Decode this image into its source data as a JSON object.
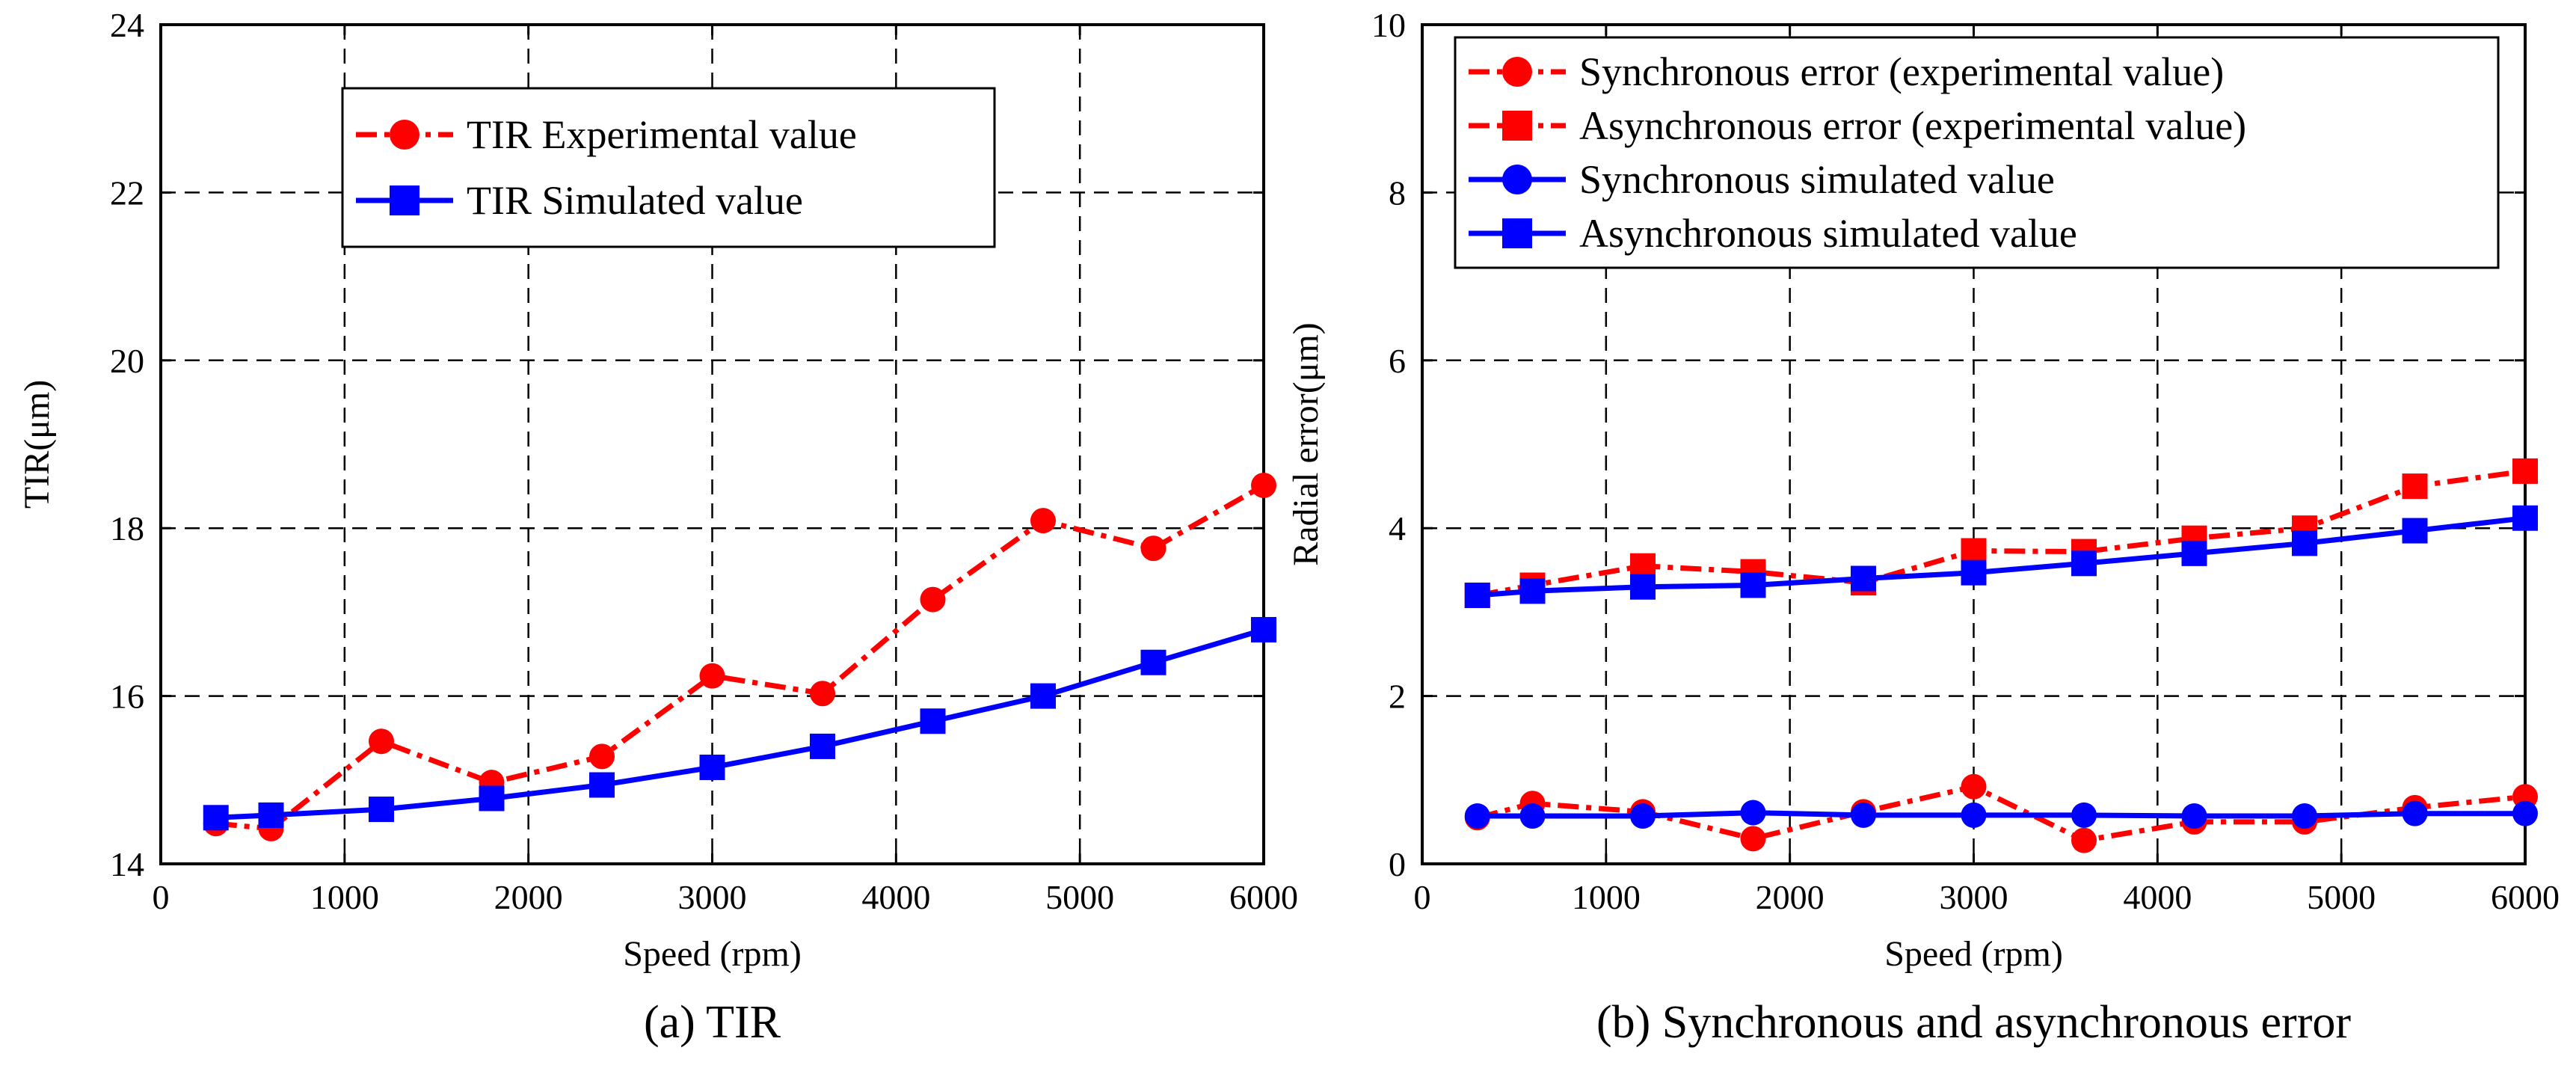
{
  "colors": {
    "experimental": "#ff0000",
    "simulated": "#0000ff"
  },
  "chart_data": [
    {
      "type": "line",
      "caption": "(a) TIR",
      "xlabel": "Speed (rpm)",
      "ylabel": "TIR(μm)",
      "xlim": [
        0,
        6000
      ],
      "ylim": [
        14,
        24
      ],
      "xticks": [
        0,
        1000,
        2000,
        3000,
        4000,
        5000,
        6000
      ],
      "yticks": [
        14,
        16,
        18,
        20,
        22,
        24
      ],
      "xtick_labels": [
        "0",
        "1000",
        "2000",
        "3000",
        "4000",
        "5000",
        "6000"
      ],
      "ytick_labels": [
        "14",
        "16",
        "18",
        "20",
        "22",
        "24"
      ],
      "grid": true,
      "legend_position": "top-center",
      "x": [
        300,
        600,
        1200,
        1800,
        2400,
        3000,
        3600,
        4200,
        4800,
        5400,
        6000
      ],
      "series": [
        {
          "name": "TIR Experimental value",
          "marker": "circle",
          "line": "dash-dot",
          "color": "#ff0000",
          "values": [
            14.48,
            14.42,
            15.46,
            14.97,
            15.28,
            16.24,
            16.03,
            17.15,
            18.09,
            17.76,
            18.51
          ]
        },
        {
          "name": "TIR Simulated value",
          "marker": "square",
          "line": "solid",
          "color": "#0000ff",
          "values": [
            14.55,
            14.58,
            14.65,
            14.78,
            14.94,
            15.15,
            15.4,
            15.7,
            16.0,
            16.4,
            16.79
          ]
        }
      ]
    },
    {
      "type": "line",
      "caption": "(b) Synchronous and asynchronous error",
      "xlabel": "Speed (rpm)",
      "ylabel": "Radial error(μm)",
      "xlim": [
        0,
        6000
      ],
      "ylim": [
        0,
        10
      ],
      "xticks": [
        0,
        1000,
        2000,
        3000,
        4000,
        5000,
        6000
      ],
      "yticks": [
        0,
        2,
        4,
        6,
        8,
        10
      ],
      "xtick_labels": [
        "0",
        "1000",
        "2000",
        "3000",
        "4000",
        "5000",
        "6000"
      ],
      "ytick_labels": [
        "0",
        "2",
        "4",
        "6",
        "8",
        "10"
      ],
      "grid": true,
      "legend_position": "top",
      "x": [
        300,
        600,
        1200,
        1800,
        2400,
        3000,
        3600,
        4200,
        4800,
        5400,
        6000
      ],
      "series": [
        {
          "name": "Synchronous error (experimental value)",
          "marker": "circle",
          "line": "dash-dot",
          "color": "#ff0000",
          "values": [
            0.55,
            0.72,
            0.62,
            0.3,
            0.62,
            0.92,
            0.28,
            0.5,
            0.5,
            0.67,
            0.8
          ]
        },
        {
          "name": "Asynchronous error (experimental value)",
          "marker": "square",
          "line": "dash-dot",
          "color": "#ff0000",
          "values": [
            3.2,
            3.32,
            3.55,
            3.48,
            3.35,
            3.73,
            3.72,
            3.88,
            4.0,
            4.5,
            4.68
          ]
        },
        {
          "name": "Synchronous simulated value",
          "marker": "circle",
          "line": "solid",
          "color": "#0000ff",
          "values": [
            0.57,
            0.57,
            0.57,
            0.61,
            0.58,
            0.58,
            0.58,
            0.57,
            0.57,
            0.6,
            0.6
          ]
        },
        {
          "name": "Asynchronous simulated value",
          "marker": "square",
          "line": "solid",
          "color": "#0000ff",
          "values": [
            3.2,
            3.25,
            3.3,
            3.32,
            3.4,
            3.47,
            3.58,
            3.7,
            3.82,
            3.97,
            4.12
          ]
        }
      ]
    }
  ]
}
